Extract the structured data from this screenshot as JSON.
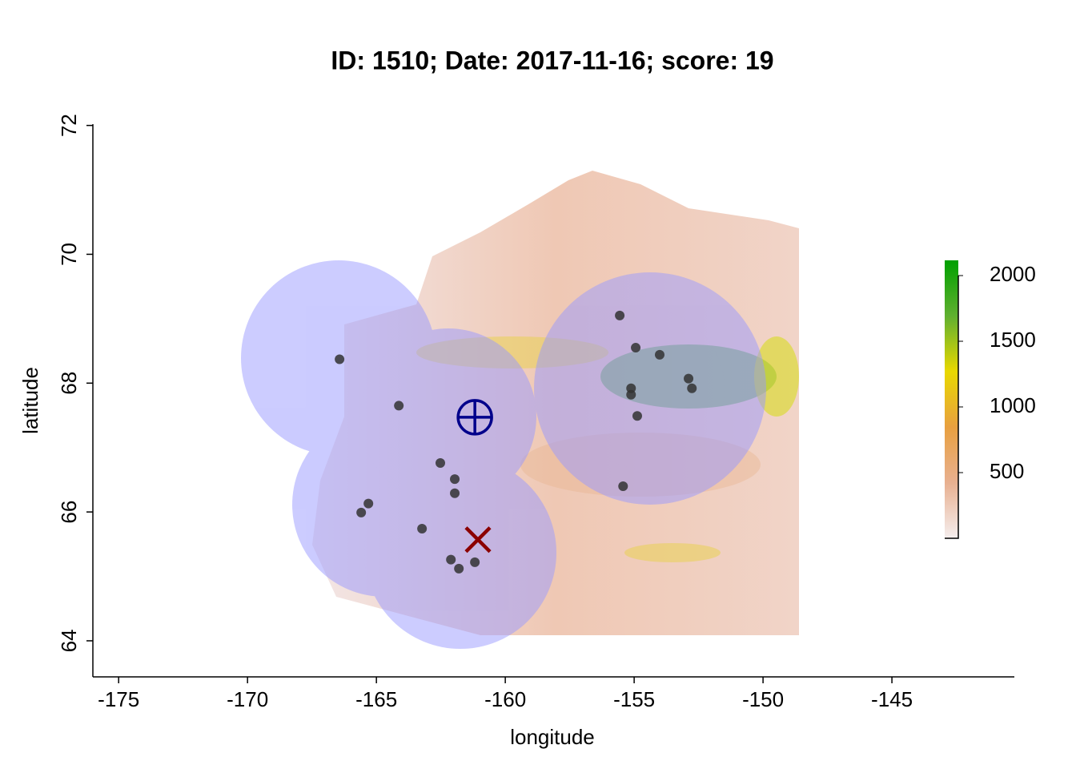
{
  "chart_data": {
    "type": "scatter",
    "title": "ID: 1510;  Date: 2017-11-16;  score: 19",
    "x_label": "longitude",
    "y_label": "latitude",
    "xlim": [
      -176.0,
      -140.25
    ],
    "ylim": [
      63.44,
      72.02
    ],
    "xticks": [
      -175,
      -170,
      -165,
      -160,
      -155,
      -150,
      -145
    ],
    "yticks": [
      64,
      66,
      68,
      70,
      72
    ],
    "series": [
      {
        "color": "#333333",
        "marker": "dot",
        "x": [
          -166.43,
          -164.13,
          -162.52,
          -161.96,
          -161.96,
          -165.31,
          -165.59,
          -163.23,
          -162.11,
          -161.8,
          -161.18,
          -155.56,
          -154.94,
          -154.01,
          -152.89,
          -152.76,
          -155.12,
          -155.12,
          -154.88,
          -155.43
        ],
        "y": [
          68.37,
          67.65,
          66.76,
          66.51,
          66.29,
          66.13,
          65.99,
          65.74,
          65.26,
          65.12,
          65.22,
          69.05,
          68.55,
          68.44,
          68.07,
          67.92,
          67.92,
          67.82,
          67.49,
          66.4
        ]
      },
      {
        "color": "#00008b",
        "marker": "circle-plus",
        "x": [
          -161.18
        ],
        "y": [
          67.47
        ]
      },
      {
        "color": "#8b0000",
        "marker": "cross",
        "x": [
          -161.06
        ],
        "y": [
          65.57
        ]
      }
    ],
    "colorbar": {
      "lim": [
        0,
        2116
      ],
      "ticks": [
        500,
        1000,
        1500,
        2000
      ],
      "colors": [
        "#f5eeee",
        "#e8b090",
        "#e8a040",
        "#e8d800",
        "#60b030",
        "#00a000"
      ]
    }
  }
}
